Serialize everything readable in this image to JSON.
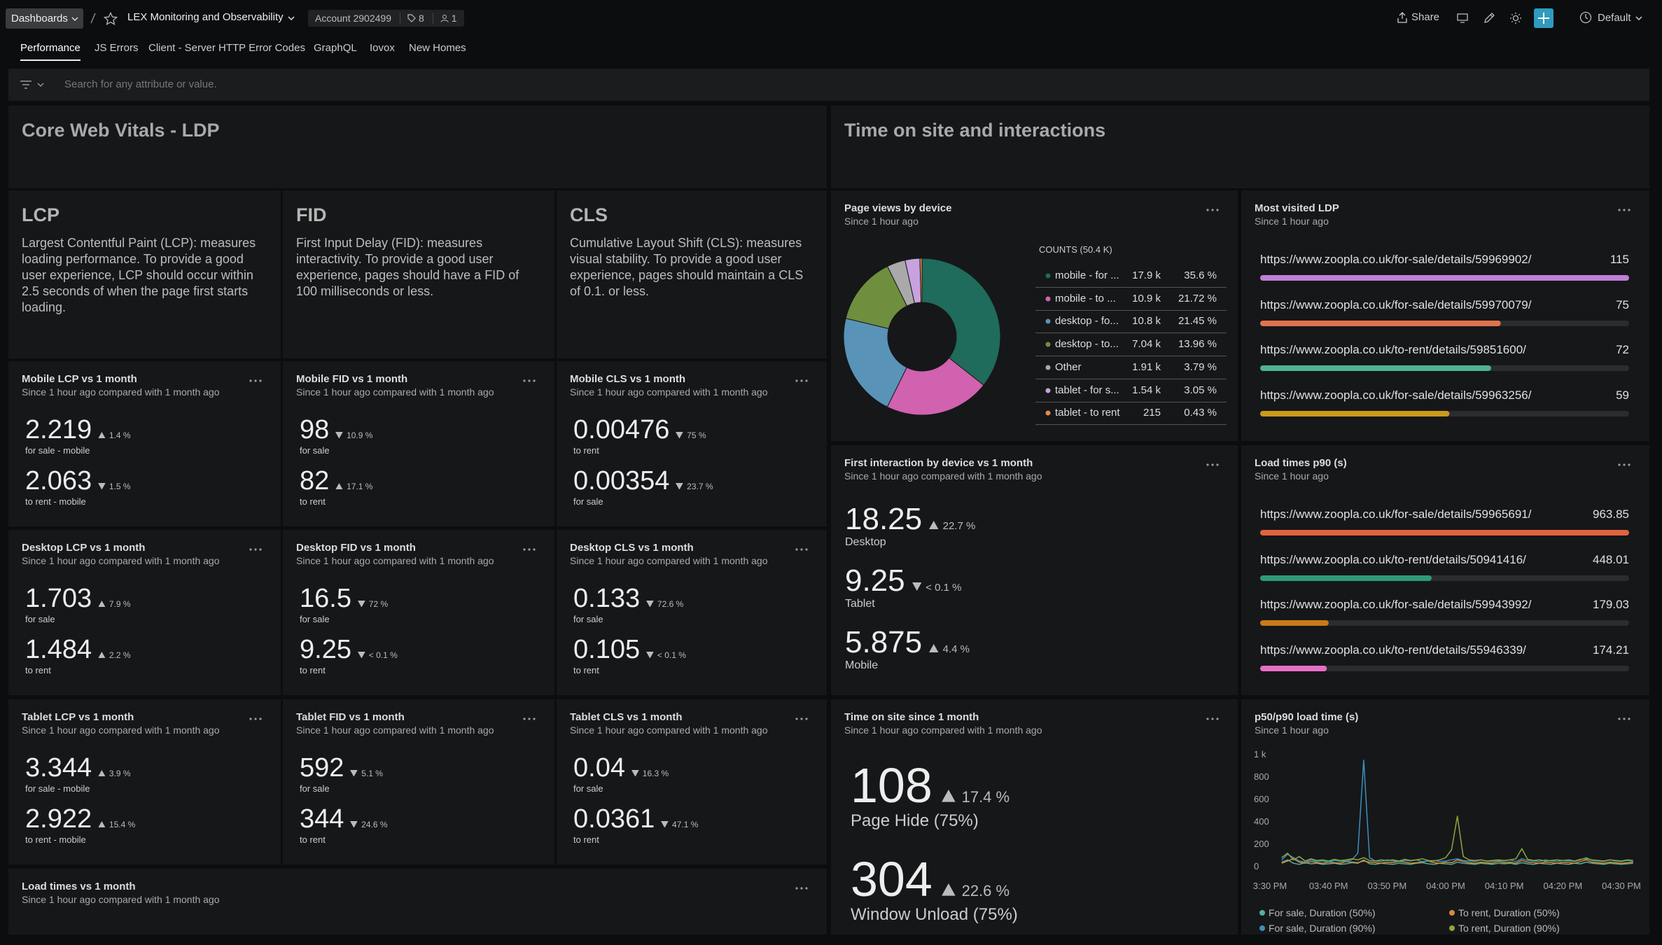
{
  "header": {
    "breadcrumb": "Dashboards",
    "title": "LEX Monitoring and Observability",
    "account": "Account 2902499",
    "tags": "8",
    "users": "1",
    "share": "Share",
    "time": "Default"
  },
  "tabs": [
    "Performance",
    "JS Errors",
    "Client - Server HTTP Error Codes",
    "GraphQL",
    "Iovox",
    "New Homes"
  ],
  "search_placeholder": "Search for any attribute or value.",
  "sections": [
    "Core Web Vitals - LDP",
    "Time on site and interactions"
  ],
  "info": [
    {
      "title": "LCP",
      "text": "Largest Contentful Paint (LCP): measures loading performance. To provide a good user experience, LCP should occur within 2.5 seconds of when the page first starts loading."
    },
    {
      "title": "FID",
      "text": "First Input Delay (FID): measures interactivity. To provide a good user experience, pages should have a FID of 100 milliseconds or less."
    },
    {
      "title": "CLS",
      "text": "Cumulative Layout Shift (CLS): measures visual stability. To provide a good user experience, pages should maintain a CLS of 0.1. or less."
    }
  ],
  "billboards": [
    {
      "title": "Mobile LCP vs 1 month",
      "subtitle": "Since 1 hour ago compared with 1 month ago",
      "items": [
        {
          "value": "2.219",
          "dir": "up",
          "change": "1.4 %",
          "label": "for sale - mobile"
        },
        {
          "value": "2.063",
          "dir": "down",
          "change": "1.5 %",
          "label": "to rent - mobile"
        }
      ]
    },
    {
      "title": "Mobile FID vs 1 month",
      "subtitle": "Since 1 hour ago compared with 1 month ago",
      "items": [
        {
          "value": "98",
          "dir": "down",
          "change": "10.9 %",
          "label": "for sale"
        },
        {
          "value": "82",
          "dir": "up",
          "change": "17.1 %",
          "label": "to rent"
        }
      ]
    },
    {
      "title": "Mobile CLS vs 1 month",
      "subtitle": "Since 1 hour ago compared with 1 month ago",
      "items": [
        {
          "value": "0.00476",
          "dir": "down",
          "change": "75 %",
          "label": "to rent"
        },
        {
          "value": "0.00354",
          "dir": "down",
          "change": "23.7 %",
          "label": "for sale"
        }
      ]
    },
    {
      "title": "Desktop LCP vs 1 month",
      "subtitle": "Since 1 hour ago compared with 1 month ago",
      "items": [
        {
          "value": "1.703",
          "dir": "up",
          "change": "7.9 %",
          "label": "for sale"
        },
        {
          "value": "1.484",
          "dir": "up",
          "change": "2.2 %",
          "label": "to rent"
        }
      ]
    },
    {
      "title": "Desktop FID vs 1 month",
      "subtitle": "Since 1 hour ago compared with 1 month ago",
      "items": [
        {
          "value": "16.5",
          "dir": "down",
          "change": "72 %",
          "label": "for sale"
        },
        {
          "value": "9.25",
          "dir": "down",
          "change": "< 0.1 %",
          "label": "to rent"
        }
      ]
    },
    {
      "title": "Desktop CLS vs 1 month",
      "subtitle": "Since 1 hour ago compared with 1 month ago",
      "items": [
        {
          "value": "0.133",
          "dir": "down",
          "change": "72.6 %",
          "label": "for sale"
        },
        {
          "value": "0.105",
          "dir": "down",
          "change": "< 0.1 %",
          "label": "to rent"
        }
      ]
    },
    {
      "title": "Tablet LCP vs 1 month",
      "subtitle": "Since 1 hour ago compared with 1 month ago",
      "items": [
        {
          "value": "3.344",
          "dir": "up",
          "change": "3.9 %",
          "label": "for sale - mobile"
        },
        {
          "value": "2.922",
          "dir": "up",
          "change": "15.4 %",
          "label": "to rent - mobile"
        }
      ]
    },
    {
      "title": "Tablet FID vs 1 month",
      "subtitle": "Since 1 hour ago compared with 1 month ago",
      "items": [
        {
          "value": "592",
          "dir": "down",
          "change": "5.1 %",
          "label": "for sale"
        },
        {
          "value": "344",
          "dir": "down",
          "change": "24.6 %",
          "label": "to rent"
        }
      ]
    },
    {
      "title": "Tablet CLS vs 1 month",
      "subtitle": "Since 1 hour ago compared with 1 month ago",
      "items": [
        {
          "value": "0.04",
          "dir": "down",
          "change": "16.3 %",
          "label": "for sale"
        },
        {
          "value": "0.0361",
          "dir": "down",
          "change": "47.1 %",
          "label": "to rent"
        }
      ]
    },
    {
      "title": "Load times vs 1 month",
      "subtitle": "Since 1 hour ago compared with 1 month ago"
    },
    {
      "title": "First interaction by device vs 1 month",
      "subtitle": "Since 1 hour ago compared with 1 month ago",
      "items": [
        {
          "value": "18.25",
          "dir": "up",
          "change": "22.7 %",
          "label": "Desktop"
        },
        {
          "value": "9.25",
          "dir": "down",
          "change": "< 0.1 %",
          "label": "Tablet"
        },
        {
          "value": "5.875",
          "dir": "up",
          "change": "4.4 %",
          "label": "Mobile"
        }
      ]
    },
    {
      "title": "Time on site since 1 month",
      "subtitle": "Since 1 hour ago compared with 1 month ago",
      "items": [
        {
          "value": "108",
          "dir": "up",
          "change": "17.4 %",
          "label": "Page Hide (75%)"
        },
        {
          "value": "304",
          "dir": "up",
          "change": "22.6 %",
          "label": "Window Unload (75%)"
        }
      ]
    }
  ],
  "chart_data": [
    {
      "type": "pie",
      "title": "Page views by device",
      "subtitle": "Since 1 hour ago",
      "legend_title": "COUNTS (50.4 K)",
      "categories": [
        "mobile - for ...",
        "mobile - to ...",
        "desktop - fo...",
        "desktop - to...",
        "Other",
        "tablet - for s...",
        "tablet - to rent"
      ],
      "counts": [
        "17.9 k",
        "10.9 k",
        "10.8 k",
        "7.04 k",
        "1.91 k",
        "1.54 k",
        "215"
      ],
      "values": [
        35.6,
        21.72,
        21.45,
        13.96,
        3.79,
        3.05,
        0.43
      ],
      "value_labels": [
        "35.6 %",
        "21.72 %",
        "21.45 %",
        "13.96 %",
        "3.79 %",
        "3.05 %",
        "0.43 %"
      ],
      "colors": [
        "#1f6b5c",
        "#d062b0",
        "#5a93b8",
        "#6f8f3e",
        "#a9a9a9",
        "#c8a2de",
        "#e58a4a"
      ]
    },
    {
      "type": "bar",
      "title": "Most visited LDP",
      "subtitle": "Since 1 hour ago",
      "categories": [
        "https://www.zoopla.co.uk/for-sale/details/59969902/",
        "https://www.zoopla.co.uk/for-sale/details/59970079/",
        "https://www.zoopla.co.uk/to-rent/details/59851600/",
        "https://www.zoopla.co.uk/for-sale/details/59963256/"
      ],
      "values": [
        115,
        75,
        72,
        59
      ],
      "colors": [
        "#c07fd6",
        "#e0734e",
        "#4db38f",
        "#c99a1d"
      ]
    },
    {
      "type": "bar",
      "title": "Load times p90 (s)",
      "subtitle": "Since 1 hour ago",
      "categories": [
        "https://www.zoopla.co.uk/for-sale/details/59965691/",
        "https://www.zoopla.co.uk/to-rent/details/50941416/",
        "https://www.zoopla.co.uk/for-sale/details/59943992/",
        "https://www.zoopla.co.uk/to-rent/details/55946339/"
      ],
      "values": [
        963.85,
        448.01,
        179.03,
        174.21
      ],
      "colors": [
        "#e0643f",
        "#2f9a78",
        "#c97a1a",
        "#e86fc4"
      ]
    },
    {
      "type": "line",
      "title": "p50/p90 load time (s)",
      "subtitle": "Since 1 hour ago",
      "grid": false,
      "categories": [
        "3:30 PM",
        null,
        null,
        null,
        null,
        null,
        null,
        null,
        null,
        null,
        "03:40 PM",
        null,
        null,
        null,
        null,
        null,
        null,
        null,
        null,
        null,
        "03:50 PM",
        null,
        null,
        null,
        null,
        null,
        null,
        null,
        null,
        null,
        "04:00 PM",
        null,
        null,
        null,
        null,
        null,
        null,
        null,
        null,
        null,
        "04:10 PM",
        null,
        null,
        null,
        null,
        null,
        null,
        null,
        null,
        null,
        "04:20 PM",
        null,
        null,
        null,
        null,
        null,
        null,
        null,
        null,
        null,
        "04:30 PM",
        null,
        null
      ],
      "ylim": [
        0,
        1000
      ],
      "yticks": [
        0,
        200,
        400,
        600,
        800,
        {
          "value": 1000,
          "label": "1 k"
        }
      ],
      "series": [
        {
          "name": "For sale, Duration (50%)",
          "color": "#4fb3a0",
          "values": [
            null,
            null,
            40,
            60,
            30,
            20,
            35,
            25,
            30,
            20,
            25,
            30,
            20,
            25,
            35,
            30,
            60,
            25,
            20,
            30,
            25,
            20,
            30,
            25,
            20,
            30,
            35,
            25,
            20,
            30,
            25,
            20,
            40,
            30,
            25,
            20,
            30,
            25,
            20,
            30,
            25,
            30,
            20,
            35,
            25,
            20,
            30,
            25,
            20,
            30,
            25,
            20,
            30,
            25,
            40,
            30,
            25,
            20,
            30,
            25,
            20,
            25,
            30
          ]
        },
        {
          "name": "To rent, Duration (50%)",
          "color": "#d98a3a",
          "values": [
            null,
            null,
            30,
            50,
            70,
            40,
            30,
            45,
            35,
            30,
            40,
            35,
            30,
            45,
            40,
            35,
            50,
            40,
            35,
            30,
            40,
            35,
            45,
            40,
            30,
            35,
            40,
            50,
            35,
            30,
            40,
            35,
            60,
            45,
            35,
            30,
            40,
            35,
            30,
            45,
            35,
            40,
            30,
            55,
            40,
            35,
            30,
            40,
            35,
            30,
            40,
            35,
            30,
            45,
            60,
            40,
            35,
            30,
            40,
            35,
            30,
            35,
            40
          ]
        },
        {
          "name": "For sale, Duration (90%)",
          "color": "#3c8fc0",
          "values": [
            null,
            null,
            60,
            110,
            80,
            50,
            40,
            60,
            45,
            50,
            40,
            55,
            45,
            50,
            60,
            120,
            950,
            80,
            50,
            45,
            60,
            50,
            45,
            55,
            50,
            60,
            45,
            50,
            55,
            45,
            50,
            60,
            70,
            55,
            50,
            45,
            60,
            50,
            45,
            55,
            50,
            60,
            45,
            70,
            55,
            50,
            45,
            60,
            50,
            45,
            55,
            50,
            45,
            60,
            80,
            55,
            50,
            45,
            60,
            50,
            45,
            55,
            50
          ]
        },
        {
          "name": "To rent, Duration (90%)",
          "color": "#8aa83a",
          "values": [
            null,
            null,
            80,
            120,
            60,
            90,
            50,
            70,
            55,
            60,
            50,
            65,
            55,
            60,
            70,
            60,
            80,
            55,
            50,
            60,
            55,
            60,
            50,
            65,
            55,
            60,
            70,
            55,
            50,
            60,
            80,
            150,
            450,
            90,
            60,
            55,
            60,
            50,
            55,
            60,
            55,
            60,
            70,
            160,
            65,
            55,
            60,
            50,
            55,
            60,
            55,
            60,
            50,
            65,
            70,
            60,
            55,
            50,
            60,
            55,
            50,
            60,
            55
          ]
        }
      ]
    }
  ]
}
